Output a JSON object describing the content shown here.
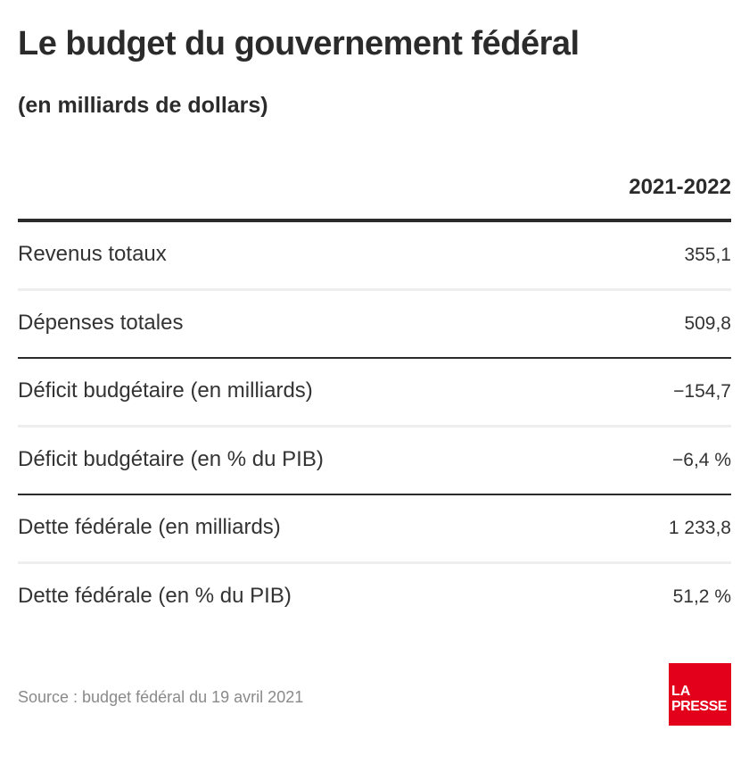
{
  "chart_data": {
    "type": "table",
    "title": "Le budget du gouvernement fédéral",
    "subtitle": "(en milliards de dollars)",
    "columns": [
      "",
      "2021-2022"
    ],
    "rows": [
      {
        "label": "Revenus totaux",
        "value": "355,1",
        "numeric": 355.1
      },
      {
        "label": "Dépenses totales",
        "value": "509,8",
        "numeric": 509.8
      },
      {
        "label": "Déficit budgétaire (en milliards)",
        "value": "−154,7",
        "numeric": -154.7
      },
      {
        "label": "Déficit budgétaire (en % du PIB)",
        "value": "−6,4 %",
        "numeric": -6.4
      },
      {
        "label": "Dette fédérale (en milliards)",
        "value": "1 233,8",
        "numeric": 1233.8
      },
      {
        "label": "Dette fédérale (en % du PIB)",
        "value": "51,2 %",
        "numeric": 51.2
      }
    ],
    "source": "Source : budget fédéral du 19 avril 2021"
  },
  "header": {
    "title": "Le budget du gouvernement fédéral",
    "subtitle": "(en milliards de dollars)"
  },
  "table": {
    "column_header": "2021-2022",
    "rows": [
      {
        "label": "Revenus totaux",
        "value": "355,1"
      },
      {
        "label": "Dépenses totales",
        "value": "509,8"
      },
      {
        "label": "Déficit budgétaire (en milliards)",
        "value": "−154,7"
      },
      {
        "label": "Déficit budgétaire (en % du PIB)",
        "value": "−6,4 %"
      },
      {
        "label": "Dette fédérale (en milliards)",
        "value": "1 233,8"
      },
      {
        "label": "Dette fédérale (en % du PIB)",
        "value": "51,2 %"
      }
    ]
  },
  "footer": {
    "source": "Source : budget fédéral du 19 avril 2021",
    "logo_line1": "LA",
    "logo_line2": "PRESSE",
    "logo_color": "#e3001b"
  }
}
